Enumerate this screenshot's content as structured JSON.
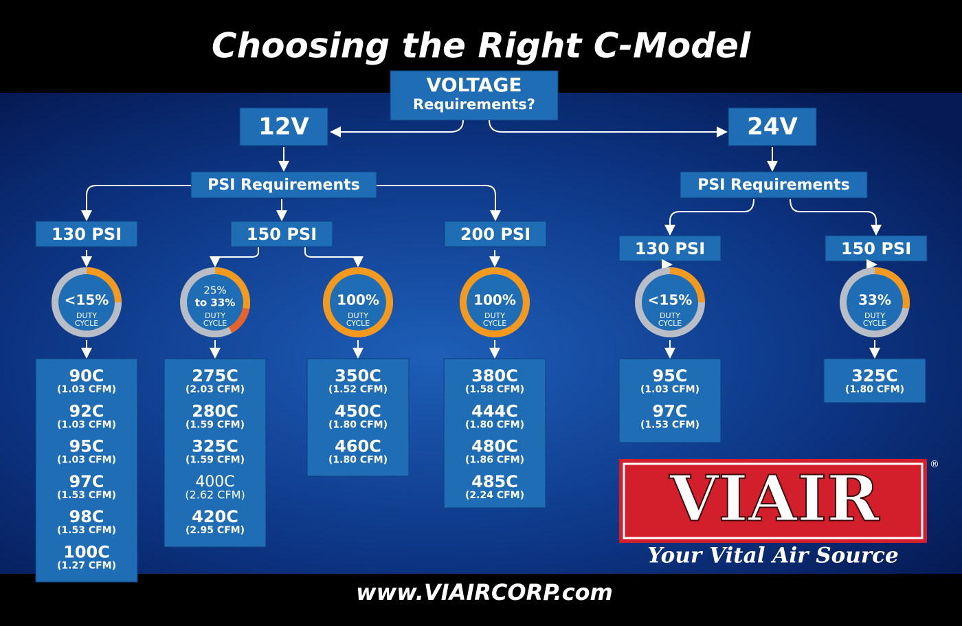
{
  "header": {
    "title": "Choosing the Right C-Model"
  },
  "root": {
    "line1": "VOLTAGE",
    "line2": "Requirements?"
  },
  "branches": [
    {
      "voltage": "12V",
      "psi_label": "PSI Requirements",
      "groups": [
        {
          "psi": "130 PSI",
          "cycles": [
            {
              "duty": [
                "<15%"
              ],
              "caption": [
                "DUTY",
                "CYCLE"
              ],
              "models": [
                {
                  "name": "90C",
                  "cfm": "(1.03 CFM)"
                },
                {
                  "name": "92C",
                  "cfm": "(1.03 CFM)"
                },
                {
                  "name": "95C",
                  "cfm": "(1.03 CFM)"
                },
                {
                  "name": "97C",
                  "cfm": "(1.53 CFM)"
                },
                {
                  "name": "98C",
                  "cfm": "(1.53 CFM)"
                },
                {
                  "name": "100C",
                  "cfm": "(1.27 CFM)"
                }
              ]
            }
          ]
        },
        {
          "psi": "150 PSI",
          "cycles": [
            {
              "duty": [
                "25%",
                "to 33%"
              ],
              "caption": [
                "DUTY",
                "CYCLE"
              ],
              "models": [
                {
                  "name": "275C",
                  "cfm": "(2.03 CFM)"
                },
                {
                  "name": "280C",
                  "cfm": "(1.59 CFM)"
                },
                {
                  "name": "325C",
                  "cfm": "(1.59 CFM)"
                },
                {
                  "name": "400C",
                  "cfm": "(2.62 CFM)"
                },
                {
                  "name": "420C",
                  "cfm": "(2.95 CFM)"
                }
              ]
            },
            {
              "duty": [
                "100%"
              ],
              "caption": [
                "DUTY",
                "CYCLE"
              ],
              "models": [
                {
                  "name": "350C",
                  "cfm": "(1.52 CFM)"
                },
                {
                  "name": "450C",
                  "cfm": "(1.80 CFM)"
                },
                {
                  "name": "460C",
                  "cfm": "(1.80 CFM)"
                }
              ]
            }
          ]
        },
        {
          "psi": "200 PSI",
          "cycles": [
            {
              "duty": [
                "100%"
              ],
              "caption": [
                "DUTY",
                "CYCLE"
              ],
              "models": [
                {
                  "name": "380C",
                  "cfm": "(1.58 CFM)"
                },
                {
                  "name": "444C",
                  "cfm": "(1.80 CFM)"
                },
                {
                  "name": "480C",
                  "cfm": "(1.86 CFM)"
                },
                {
                  "name": "485C",
                  "cfm": "(2.24 CFM)"
                }
              ]
            }
          ]
        }
      ]
    },
    {
      "voltage": "24V",
      "psi_label": "PSI Requirements",
      "groups": [
        {
          "psi": "130 PSI",
          "cycles": [
            {
              "duty": [
                "<15%"
              ],
              "caption": [
                "DUTY",
                "CYCLE"
              ],
              "models": [
                {
                  "name": "95C",
                  "cfm": "(1.03 CFM)"
                },
                {
                  "name": "97C",
                  "cfm": "(1.53 CFM)"
                }
              ]
            }
          ]
        },
        {
          "psi": "150 PSI",
          "cycles": [
            {
              "duty": [
                "33%"
              ],
              "caption": [
                "DUTY",
                "CYCLE"
              ],
              "models": [
                {
                  "name": "325C",
                  "cfm": "(1.80 CFM)"
                }
              ]
            }
          ]
        }
      ]
    }
  ],
  "logo": {
    "brand": "VIAIR",
    "registered": "®",
    "tagline": "Your Vital Air Source"
  },
  "footer": {
    "url": "www.VIAIRCORP.com"
  }
}
